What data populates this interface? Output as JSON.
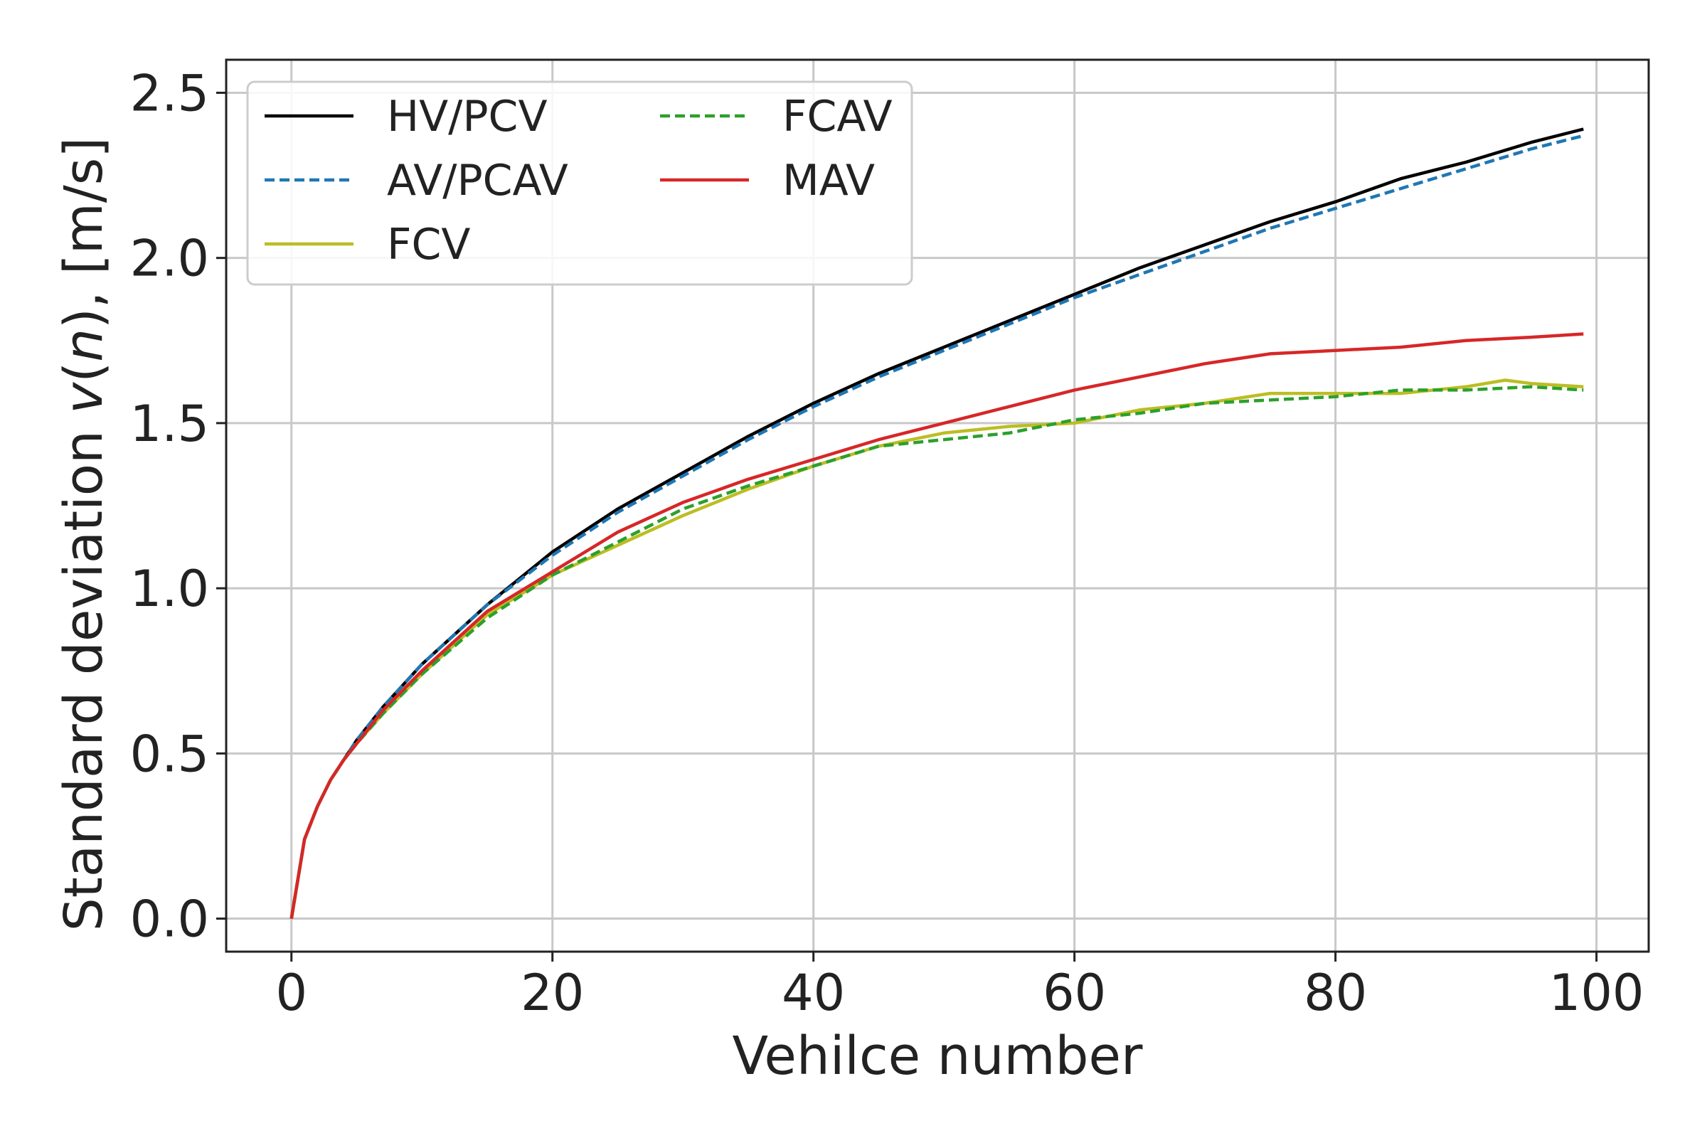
{
  "chart_data": {
    "type": "line",
    "xlabel": "Vehilce number",
    "ylabel_prefix": "Standard deviation ",
    "ylabel_var": "v",
    "ylabel_paren_open": "(",
    "ylabel_arg": "n",
    "ylabel_suffix": "), [m/s]",
    "xlim": [
      -5,
      104
    ],
    "ylim": [
      -0.1,
      2.6
    ],
    "xticks": [
      0,
      20,
      40,
      60,
      80,
      100
    ],
    "xtick_labels": [
      "0",
      "20",
      "40",
      "60",
      "80",
      "100"
    ],
    "yticks": [
      0.0,
      0.5,
      1.0,
      1.5,
      2.0,
      2.5
    ],
    "ytick_labels": [
      "0.0",
      "0.5",
      "1.0",
      "1.5",
      "2.0",
      "2.5"
    ],
    "grid": true,
    "legend_position": "top-left",
    "series": [
      {
        "name": "HV/PCV",
        "color": "#000000",
        "dash": "solid",
        "x": [
          0,
          1,
          2,
          3,
          4,
          5,
          7,
          10,
          15,
          20,
          25,
          30,
          35,
          40,
          45,
          50,
          55,
          60,
          65,
          70,
          75,
          80,
          85,
          90,
          95,
          99
        ],
        "y": [
          0.0,
          0.24,
          0.34,
          0.42,
          0.48,
          0.54,
          0.64,
          0.77,
          0.95,
          1.11,
          1.24,
          1.35,
          1.46,
          1.56,
          1.65,
          1.73,
          1.81,
          1.89,
          1.97,
          2.04,
          2.11,
          2.17,
          2.24,
          2.29,
          2.35,
          2.39
        ]
      },
      {
        "name": "AV/PCAV",
        "color": "#1f77b4",
        "dash": "dashed",
        "x": [
          0,
          1,
          2,
          3,
          4,
          5,
          7,
          10,
          15,
          20,
          25,
          30,
          35,
          40,
          45,
          50,
          55,
          60,
          65,
          70,
          75,
          80,
          85,
          90,
          95,
          99
        ],
        "y": [
          0.0,
          0.24,
          0.34,
          0.42,
          0.48,
          0.54,
          0.64,
          0.77,
          0.95,
          1.1,
          1.23,
          1.34,
          1.45,
          1.55,
          1.64,
          1.72,
          1.8,
          1.88,
          1.95,
          2.02,
          2.09,
          2.15,
          2.21,
          2.27,
          2.33,
          2.37
        ]
      },
      {
        "name": "FCV",
        "color": "#bcbd22",
        "dash": "solid",
        "x": [
          0,
          1,
          2,
          3,
          4,
          5,
          7,
          10,
          15,
          20,
          25,
          30,
          35,
          40,
          45,
          50,
          55,
          60,
          65,
          70,
          75,
          80,
          85,
          90,
          93,
          95,
          99
        ],
        "y": [
          0.0,
          0.24,
          0.34,
          0.42,
          0.48,
          0.53,
          0.62,
          0.74,
          0.92,
          1.04,
          1.13,
          1.22,
          1.3,
          1.37,
          1.43,
          1.47,
          1.49,
          1.5,
          1.54,
          1.56,
          1.59,
          1.59,
          1.59,
          1.61,
          1.63,
          1.62,
          1.61
        ]
      },
      {
        "name": "FCAV",
        "color": "#2ca02c",
        "dash": "dashed",
        "x": [
          0,
          1,
          2,
          3,
          4,
          5,
          7,
          10,
          15,
          20,
          25,
          30,
          35,
          40,
          45,
          50,
          55,
          60,
          65,
          70,
          75,
          80,
          85,
          90,
          95,
          99
        ],
        "y": [
          0.0,
          0.24,
          0.34,
          0.42,
          0.48,
          0.53,
          0.62,
          0.74,
          0.91,
          1.04,
          1.14,
          1.24,
          1.31,
          1.37,
          1.43,
          1.45,
          1.47,
          1.51,
          1.53,
          1.56,
          1.57,
          1.58,
          1.6,
          1.6,
          1.61,
          1.6
        ]
      },
      {
        "name": "MAV",
        "color": "#d62728",
        "dash": "solid",
        "x": [
          0,
          1,
          2,
          3,
          4,
          5,
          7,
          10,
          15,
          20,
          25,
          30,
          35,
          40,
          45,
          50,
          55,
          60,
          65,
          70,
          75,
          80,
          85,
          90,
          95,
          99
        ],
        "y": [
          0.0,
          0.24,
          0.34,
          0.42,
          0.48,
          0.53,
          0.63,
          0.75,
          0.93,
          1.05,
          1.17,
          1.26,
          1.33,
          1.39,
          1.45,
          1.5,
          1.55,
          1.6,
          1.64,
          1.68,
          1.71,
          1.72,
          1.73,
          1.75,
          1.76,
          1.77
        ]
      }
    ]
  }
}
